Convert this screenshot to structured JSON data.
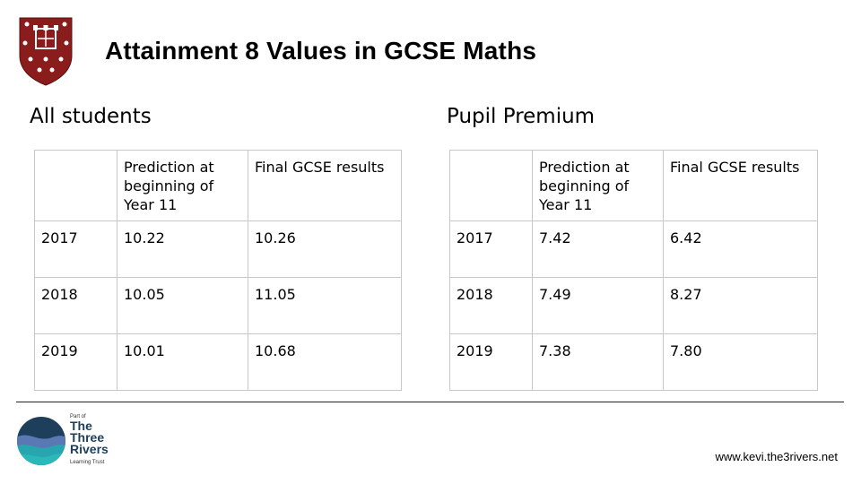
{
  "header": {
    "title": "Attainment 8 Values in GCSE Maths"
  },
  "colors": {
    "crest_red": "#8a1c1c",
    "logo_navy": "#1d3f5c",
    "logo_teal": "#27a6b0"
  },
  "sections": {
    "all_students_label": "All students",
    "pupil_premium_label": "Pupil Premium"
  },
  "tables": {
    "all_students": {
      "headers": [
        "",
        "Prediction at beginning of Year 11",
        "Final GCSE results"
      ],
      "rows": [
        [
          "2017",
          "10.22",
          "10.26"
        ],
        [
          "2018",
          "10.05",
          "11.05"
        ],
        [
          "2019",
          "10.01",
          "10.68"
        ]
      ]
    },
    "pupil_premium": {
      "headers": [
        "",
        "Prediction at beginning of Year 11",
        "Final GCSE results"
      ],
      "rows": [
        [
          "2017",
          "7.42",
          "6.42"
        ],
        [
          "2018",
          "7.49",
          "8.27"
        ],
        [
          "2019",
          "7.38",
          "7.80"
        ]
      ]
    }
  },
  "footer": {
    "logo": {
      "part_of": "Part of",
      "name_line1": "The",
      "name_line2": "Three",
      "name_line3": "Rivers",
      "subtitle": "Learning Trust"
    },
    "url": "www.kevi.the3rivers.net"
  }
}
